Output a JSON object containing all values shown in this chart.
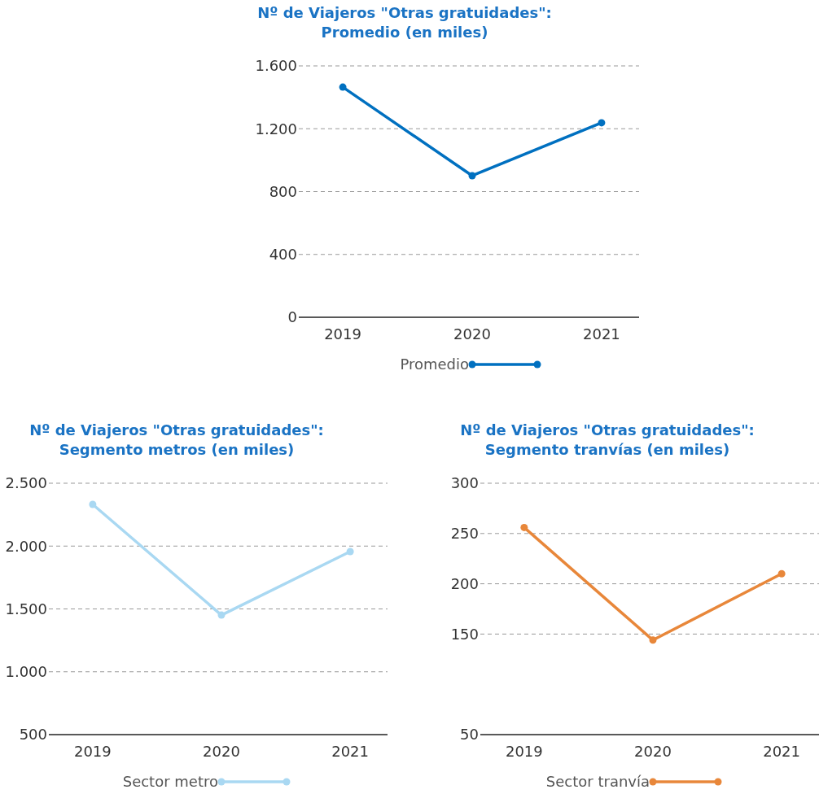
{
  "chart_data": [
    {
      "type": "line",
      "title": "Nº de Viajeros \"Otras gratuidades\":\nPromedio (en miles)",
      "categories": [
        "2019",
        "2020",
        "2021"
      ],
      "series": [
        {
          "name": "Promedio",
          "color": "#0070c0",
          "values": [
            1465,
            901,
            1238
          ]
        }
      ],
      "ylim": [
        0,
        1600
      ],
      "yticks": [
        0,
        400,
        800,
        {
          "value": 1200,
          "label": "1.200"
        },
        {
          "value": 1600,
          "label": "1.600"
        }
      ],
      "grid": "y",
      "legend": "bottom",
      "marker": "circle"
    },
    {
      "type": "line",
      "title": "Nº de Viajeros \"Otras gratuidades\":\nSegmento metros (en miles)",
      "categories": [
        "2019",
        "2020",
        "2021"
      ],
      "series": [
        {
          "name": "Sector metro",
          "color": "#a9d8f2",
          "values": [
            2332,
            1451,
            1956
          ]
        }
      ],
      "ylim": [
        500,
        2500
      ],
      "yticks": [
        500,
        {
          "value": 1000,
          "label": "1.000"
        },
        {
          "value": 1500,
          "label": "1.500"
        },
        {
          "value": 2000,
          "label": "2.000"
        },
        {
          "value": 2500,
          "label": "2.500"
        }
      ],
      "grid": "y",
      "legend": "bottom",
      "marker": "circle"
    },
    {
      "type": "line",
      "title": "Nº de Viajeros \"Otras gratuidades\":\nSegmento tranvías (en miles)",
      "categories": [
        "2019",
        "2020",
        "2021"
      ],
      "series": [
        {
          "name": "Sector tranvía",
          "color": "#e8873a",
          "values": [
            256,
            144,
            210
          ]
        }
      ],
      "ylim": [
        50,
        300
      ],
      "yticks": [
        50,
        150,
        200,
        250,
        300
      ],
      "grid": "y",
      "legend": "bottom",
      "marker": "circle"
    }
  ]
}
